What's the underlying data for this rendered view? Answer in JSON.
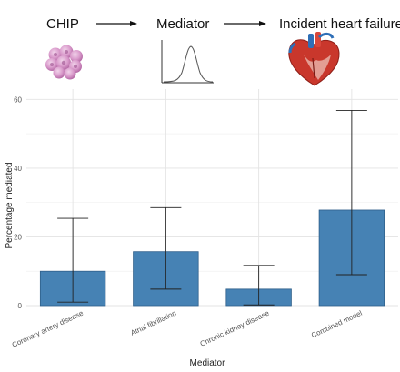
{
  "flow": {
    "steps": [
      "CHIP",
      "Mediator",
      "Incident heart failure"
    ],
    "icons": [
      "cell-cluster-icon",
      "bell-curve-icon",
      "heart-icon"
    ]
  },
  "chart_data": {
    "type": "bar",
    "categories": [
      "Coronary artery disease",
      "Atrial fibrillation",
      "Chronic kidney disease",
      "Combined model"
    ],
    "values": [
      10.0,
      15.7,
      4.8,
      27.8
    ],
    "error_low": [
      1.0,
      4.8,
      0.2,
      9.0
    ],
    "error_high": [
      25.4,
      28.5,
      11.7,
      56.8
    ],
    "xlabel": "Mediator",
    "ylabel": "Percentage mediated",
    "ylim": [
      0,
      63
    ],
    "yticks": [
      0,
      20,
      40,
      60
    ],
    "grid": true,
    "bar_color": "#4682b4",
    "bar_edge_color": "#2f5f8a"
  }
}
